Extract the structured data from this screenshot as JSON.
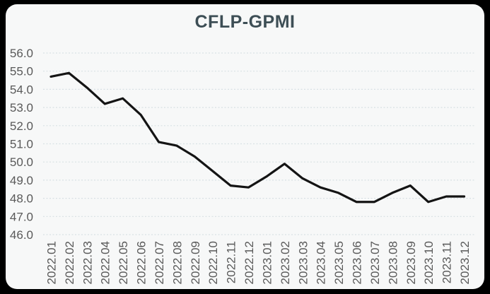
{
  "chart_data": {
    "type": "line",
    "title": "CFLP-GPMI",
    "categories": [
      "2022.01",
      "2022.02",
      "2022.03",
      "2022.04",
      "2022.05",
      "2022.06",
      "2022.07",
      "2022.08",
      "2022.09",
      "2022.10",
      "2022.11",
      "2022.12",
      "2023.01",
      "2023.02",
      "2023.03",
      "2023.04",
      "2023.05",
      "2023.06",
      "2023.07",
      "2023.08",
      "2023.09",
      "2023.10",
      "2023.11",
      "2023.12"
    ],
    "series": [
      {
        "name": "CFLP-GPMI",
        "values": [
          54.7,
          54.9,
          54.1,
          53.2,
          53.5,
          52.6,
          51.1,
          50.9,
          50.3,
          49.5,
          48.7,
          48.6,
          49.2,
          49.9,
          49.1,
          48.6,
          48.3,
          47.8,
          47.8,
          48.3,
          48.7,
          47.8,
          48.1,
          48.1
        ]
      }
    ],
    "xlabel": "",
    "ylabel": "",
    "ylim": [
      46.0,
      56.0
    ],
    "ytick_values": [
      56.0,
      55.0,
      54.0,
      53.0,
      52.0,
      51.0,
      50.0,
      49.0,
      48.0,
      47.0,
      46.0
    ],
    "ytick_labels": [
      "56.0",
      "55.0",
      "54.0",
      "53.0",
      "52.0",
      "51.0",
      "50.0",
      "49.0",
      "48.0",
      "47.0",
      "46.0"
    ],
    "grid": "horizontal-dashed",
    "legend": "none",
    "x_label_rotation_deg": -90,
    "colors": {
      "page_bg": "#000000",
      "card_bg": "#f7f8f8",
      "title": "#3d4e55",
      "tick_label": "#595959",
      "gridline": "#d8e1e4",
      "line": "#141414"
    }
  }
}
